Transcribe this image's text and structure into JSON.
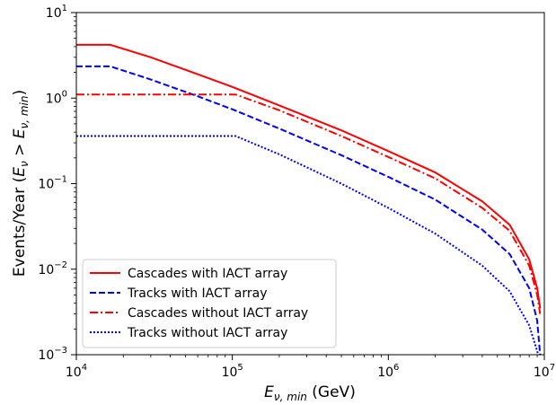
{
  "chart_data": {
    "type": "line",
    "title": "",
    "xlabel": "E_{ν,min} (GeV)",
    "ylabel": "Events/Year (E_ν > E_{ν,min})",
    "xscale": "log",
    "yscale": "log",
    "xlim": [
      10000,
      10000000
    ],
    "ylim": [
      0.001,
      10
    ],
    "x_ticks": [
      {
        "value": 10000,
        "base": "10",
        "exp": "4"
      },
      {
        "value": 100000,
        "base": "10",
        "exp": "5"
      },
      {
        "value": 1000000,
        "base": "10",
        "exp": "6"
      },
      {
        "value": 10000000,
        "base": "10",
        "exp": "7"
      }
    ],
    "y_ticks": [
      {
        "value": 0.001,
        "base": "10",
        "exp": "−3"
      },
      {
        "value": 0.01,
        "base": "10",
        "exp": "−2"
      },
      {
        "value": 0.1,
        "base": "10",
        "exp": "−1"
      },
      {
        "value": 1,
        "base": "10",
        "exp": "0"
      },
      {
        "value": 10,
        "base": "10",
        "exp": "1"
      }
    ],
    "grid": false,
    "legend_position": "lower-left",
    "series": [
      {
        "name": "Cascades with IACT array",
        "color": "#ff0000",
        "style": "solid",
        "x": [
          10000,
          16500,
          30000,
          60000,
          100000,
          200000,
          500000,
          1000000,
          2000000,
          4000000,
          6000000,
          8000000,
          9000000,
          9400000
        ],
        "y": [
          4.2,
          4.2,
          3.0,
          1.9,
          1.35,
          0.82,
          0.42,
          0.24,
          0.135,
          0.062,
          0.033,
          0.013,
          0.006,
          0.0035
        ]
      },
      {
        "name": "Tracks with IACT array",
        "color": "#0000ff",
        "style": "dashed",
        "x": [
          10000,
          16500,
          30000,
          60000,
          100000,
          200000,
          500000,
          1000000,
          2000000,
          4000000,
          6000000,
          8000000,
          9000000,
          9400000
        ],
        "y": [
          2.35,
          2.35,
          1.65,
          1.05,
          0.74,
          0.44,
          0.215,
          0.12,
          0.065,
          0.029,
          0.015,
          0.006,
          0.0025,
          0.001
        ]
      },
      {
        "name": "Cascades without IACT array",
        "color": "#ff0000",
        "style": "dashdot",
        "x": [
          10000,
          105000,
          200000,
          500000,
          1000000,
          2000000,
          4000000,
          6000000,
          8000000,
          9000000,
          9400000
        ],
        "y": [
          1.1,
          1.1,
          0.72,
          0.36,
          0.205,
          0.115,
          0.052,
          0.028,
          0.011,
          0.005,
          0.003
        ]
      },
      {
        "name": "Tracks without IACT array",
        "color": "#0000ff",
        "style": "dotted",
        "x": [
          10000,
          105000,
          200000,
          500000,
          1000000,
          2000000,
          4000000,
          6000000,
          8000000,
          9000000,
          9400000
        ],
        "y": [
          0.36,
          0.36,
          0.22,
          0.1,
          0.052,
          0.026,
          0.011,
          0.0055,
          0.0022,
          0.0011,
          0.0008
        ]
      }
    ]
  }
}
